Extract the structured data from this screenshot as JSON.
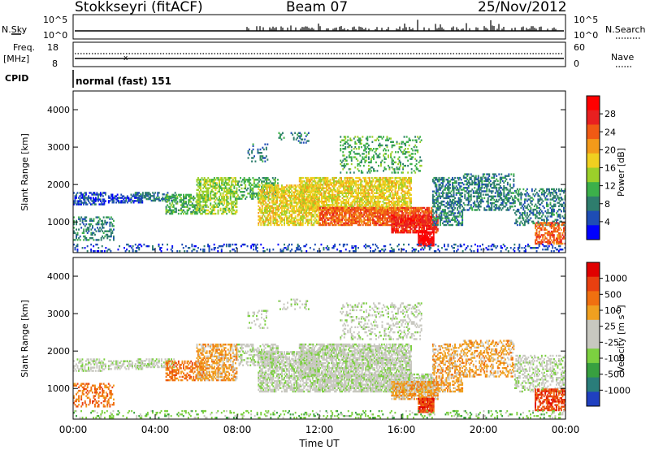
{
  "header": {
    "station": "Stokkseyri (fitACF)",
    "beam": "Beam 07",
    "date": "25/Nov/2012"
  },
  "top_panels": {
    "nsky": {
      "label": "N.Sky",
      "ticks": [
        "10^5",
        "10^0"
      ],
      "right_label": "N.Search",
      "right_ticks": [
        "10^5",
        "10^0"
      ]
    },
    "freq": {
      "label_line1": "Freq.",
      "label_line2": "[MHz]",
      "ticks": [
        "18",
        "8"
      ],
      "right_label": "Nave",
      "right_ticks": [
        "60",
        "0"
      ]
    },
    "cpid": {
      "label": "CPID",
      "text": "normal (fast) 151"
    }
  },
  "chart_data": [
    {
      "type": "heatmap",
      "title": "",
      "xlabel": "",
      "ylabel": "Slant Range [km]",
      "y_ticks": [
        "4000",
        "3000",
        "2000",
        "1000"
      ],
      "ylim": [
        180,
        4500
      ],
      "x_range_hours": [
        0,
        24
      ],
      "colorbar": {
        "label": "Power [dB]",
        "ticks": [
          "28",
          "24",
          "20",
          "16",
          "12",
          "8",
          "4"
        ],
        "colors": [
          "#0000ff",
          "#1e4db5",
          "#2e7d6d",
          "#3cb04a",
          "#9bd02a",
          "#f0d020",
          "#f39a1a",
          "#f05a14",
          "#e82020",
          "#ff0000"
        ]
      }
    },
    {
      "type": "heatmap",
      "title": "",
      "xlabel": "Time UT",
      "ylabel": "Slant Range [km]",
      "y_ticks": [
        "4000",
        "3000",
        "2000",
        "1000"
      ],
      "ylim": [
        180,
        4500
      ],
      "x_ticks": [
        "00:00",
        "04:00",
        "08:00",
        "12:00",
        "16:00",
        "20:00",
        "00:00"
      ],
      "x_range_hours": [
        0,
        24
      ],
      "colorbar": {
        "label": "Velocity [m s-1]",
        "ticks": [
          "1000",
          "500",
          "100",
          "25",
          "-25",
          "-100",
          "-500",
          "-1000"
        ],
        "colors": [
          "#2040c0",
          "#2a7d7a",
          "#38a040",
          "#7cd040",
          "#c8c8c0",
          "#c8c8c0",
          "#f0a020",
          "#f07010",
          "#e84010",
          "#e00000"
        ]
      }
    }
  ]
}
